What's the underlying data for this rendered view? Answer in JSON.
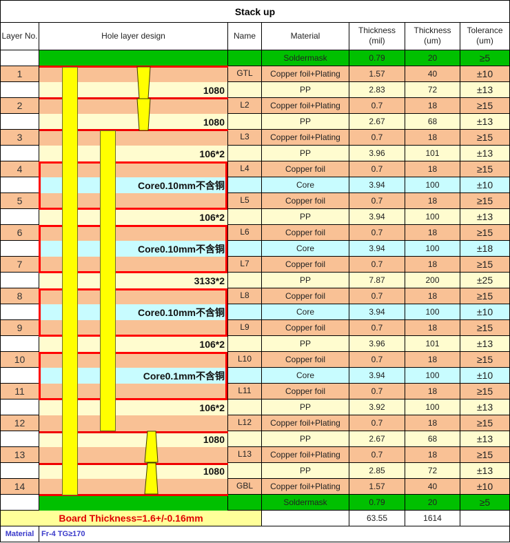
{
  "title": "Stack up",
  "headers": {
    "layer_no": "Layer No.",
    "hole_design": "Hole layer design",
    "name": "Name",
    "material": "Material",
    "thk_mil_1": "Thickness",
    "thk_mil_2": "(mil)",
    "thk_um_1": "Thickness",
    "thk_um_2": "(um)",
    "tol_1": "Tolerance",
    "tol_2": "(um)"
  },
  "colors": {
    "soldermask": "#00c000",
    "copper": "#f9c195",
    "pp": "#fffccf",
    "core": "#c8fcff",
    "hole_fill": "#ffff00",
    "boundary_red": "#ff0000",
    "board_thickness_text": "#e00000",
    "material_text": "#3a3aca"
  },
  "rows": [
    {
      "layer": "",
      "hole_label": "",
      "name": "",
      "material": "Soldermask",
      "mil": "0.79",
      "um": "20",
      "tol": "≥5",
      "type": "soldermask"
    },
    {
      "layer": "1",
      "hole_label": "",
      "name": "GTL",
      "material": "Copper foil+Plating",
      "mil": "1.57",
      "um": "40",
      "tol": "±10",
      "type": "copper"
    },
    {
      "layer": "",
      "hole_label": "1080",
      "name": "",
      "material": "PP",
      "mil": "2.83",
      "um": "72",
      "tol": "±13",
      "type": "pp"
    },
    {
      "layer": "2",
      "hole_label": "",
      "name": "L2",
      "material": "Copper foil+Plating",
      "mil": "0.7",
      "um": "18",
      "tol": "≥15",
      "type": "copper"
    },
    {
      "layer": "",
      "hole_label": "1080",
      "name": "",
      "material": "PP",
      "mil": "2.67",
      "um": "68",
      "tol": "±13",
      "type": "pp"
    },
    {
      "layer": "3",
      "hole_label": "",
      "name": "L3",
      "material": "Copper foil+Plating",
      "mil": "0.7",
      "um": "18",
      "tol": "≥15",
      "type": "copper"
    },
    {
      "layer": "",
      "hole_label": "106*2",
      "name": "",
      "material": "PP",
      "mil": "3.96",
      "um": "101",
      "tol": "±13",
      "type": "pp"
    },
    {
      "layer": "4",
      "hole_label": "",
      "name": "L4",
      "material": "Copper foil",
      "mil": "0.7",
      "um": "18",
      "tol": "≥15",
      "type": "copper"
    },
    {
      "layer": "",
      "hole_label": "Core0.10mm不含铜",
      "name": "",
      "material": "Core",
      "mil": "3.94",
      "um": "100",
      "tol": "±10",
      "type": "core"
    },
    {
      "layer": "5",
      "hole_label": "",
      "name": "L5",
      "material": "Copper foil",
      "mil": "0.7",
      "um": "18",
      "tol": "≥15",
      "type": "copper"
    },
    {
      "layer": "",
      "hole_label": "106*2",
      "name": "",
      "material": "PP",
      "mil": "3.94",
      "um": "100",
      "tol": "±13",
      "type": "pp"
    },
    {
      "layer": "6",
      "hole_label": "",
      "name": "L6",
      "material": "Copper foil",
      "mil": "0.7",
      "um": "18",
      "tol": "≥15",
      "type": "copper"
    },
    {
      "layer": "",
      "hole_label": "Core0.10mm不含铜",
      "name": "",
      "material": "Core",
      "mil": "3.94",
      "um": "100",
      "tol": "±18",
      "type": "core"
    },
    {
      "layer": "7",
      "hole_label": "",
      "name": "L7",
      "material": "Copper foil",
      "mil": "0.7",
      "um": "18",
      "tol": "≥15",
      "type": "copper"
    },
    {
      "layer": "",
      "hole_label": "3133*2",
      "name": "",
      "material": "PP",
      "mil": "7.87",
      "um": "200",
      "tol": "±25",
      "type": "pp"
    },
    {
      "layer": "8",
      "hole_label": "",
      "name": "L8",
      "material": "Copper foil",
      "mil": "0.7",
      "um": "18",
      "tol": "≥15",
      "type": "copper"
    },
    {
      "layer": "",
      "hole_label": "Core0.10mm不含铜",
      "name": "",
      "material": "Core",
      "mil": "3.94",
      "um": "100",
      "tol": "±10",
      "type": "core"
    },
    {
      "layer": "9",
      "hole_label": "",
      "name": "L9",
      "material": "Copper foil",
      "mil": "0.7",
      "um": "18",
      "tol": "≥15",
      "type": "copper"
    },
    {
      "layer": "",
      "hole_label": "106*2",
      "name": "",
      "material": "PP",
      "mil": "3.96",
      "um": "101",
      "tol": "±13",
      "type": "pp"
    },
    {
      "layer": "10",
      "hole_label": "",
      "name": "L10",
      "material": "Copper foil",
      "mil": "0.7",
      "um": "18",
      "tol": "≥15",
      "type": "copper"
    },
    {
      "layer": "",
      "hole_label": "Core0.1mm不含铜",
      "name": "",
      "material": "Core",
      "mil": "3.94",
      "um": "100",
      "tol": "±10",
      "type": "core"
    },
    {
      "layer": "11",
      "hole_label": "",
      "name": "L11",
      "material": "Copper foil",
      "mil": "0.7",
      "um": "18",
      "tol": "≥15",
      "type": "copper"
    },
    {
      "layer": "",
      "hole_label": "106*2",
      "name": "",
      "material": "PP",
      "mil": "3.92",
      "um": "100",
      "tol": "±13",
      "type": "pp"
    },
    {
      "layer": "12",
      "hole_label": "",
      "name": "L12",
      "material": "Copper foil+Plating",
      "mil": "0.7",
      "um": "18",
      "tol": "≥15",
      "type": "copper"
    },
    {
      "layer": "",
      "hole_label": "1080",
      "name": "",
      "material": "PP",
      "mil": "2.67",
      "um": "68",
      "tol": "±13",
      "type": "pp"
    },
    {
      "layer": "13",
      "hole_label": "",
      "name": "L13",
      "material": "Copper foil+Plating",
      "mil": "0.7",
      "um": "18",
      "tol": "≥15",
      "type": "copper"
    },
    {
      "layer": "",
      "hole_label": "1080",
      "name": "",
      "material": "PP",
      "mil": "2.85",
      "um": "72",
      "tol": "±13",
      "type": "pp"
    },
    {
      "layer": "14",
      "hole_label": "",
      "name": "GBL",
      "material": "Copper foil+Plating",
      "mil": "1.57",
      "um": "40",
      "tol": "±10",
      "type": "copper"
    },
    {
      "layer": "",
      "hole_label": "",
      "name": "",
      "material": "Soldermask",
      "mil": "0.79",
      "um": "20",
      "tol": "≥5",
      "type": "soldermask"
    }
  ],
  "totals": {
    "board_thickness": "Board Thickness=1.6+/-0.16mm",
    "mil": "63.55",
    "um": "1614"
  },
  "material_note": {
    "label": "Material",
    "value": "Fr-4  TG≥170"
  }
}
